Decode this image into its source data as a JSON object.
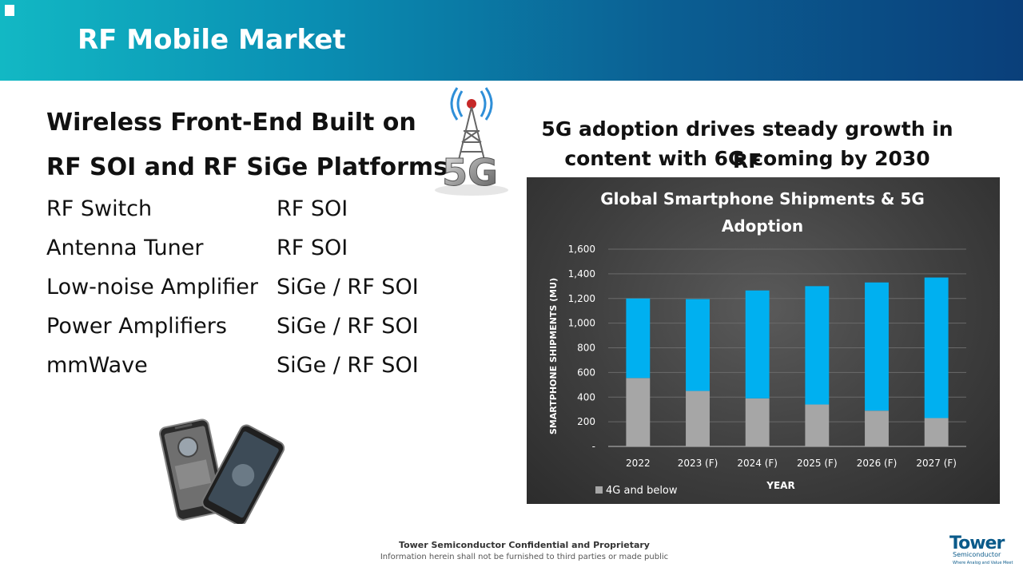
{
  "header": {
    "title": "RF Mobile Market"
  },
  "left": {
    "title_line1": "Wireless Front-End Built on",
    "title_line2": "RF SOI and RF SiGe Platforms",
    "rows": [
      {
        "name": "RF Switch",
        "platform": "RF SOI"
      },
      {
        "name": "Antenna Tuner",
        "platform": "RF SOI"
      },
      {
        "name": "Low-noise Amplifier",
        "platform": "SiGe / RF SOI"
      },
      {
        "name": "Power Amplifiers",
        "platform": "SiGe / RF SOI"
      },
      {
        "name": "mmWave",
        "platform": "SiGe / RF SOI"
      }
    ]
  },
  "right": {
    "headline_line1": "5G adoption drives steady growth in RF",
    "headline_line2": "content with 6G coming by 2030"
  },
  "icons": {
    "badge": "5g-tower-icon",
    "device": "smartphones-icon"
  },
  "badge_text": "5G",
  "chart_data": {
    "type": "bar",
    "stacked": true,
    "title_line1": "Global Smartphone Shipments & 5G",
    "title_line2": "Adoption",
    "xlabel": "YEAR",
    "ylabel": "SMARTPHONE SHIPMENTS (MU)",
    "categories": [
      "2022",
      "2023 (F)",
      "2024 (F)",
      "2025 (F)",
      "2026 (F)",
      "2027 (F)"
    ],
    "ylim": [
      0,
      1600
    ],
    "yticks": [
      0,
      200,
      400,
      600,
      800,
      1000,
      1200,
      1400,
      1600
    ],
    "ytick_labels": [
      "-",
      "200",
      "400",
      "600",
      "800",
      "1,000",
      "1,200",
      "1,400",
      "1,600"
    ],
    "series": [
      {
        "name": "4G and below",
        "color": "#a6a6a6",
        "values": [
          555,
          450,
          390,
          340,
          290,
          230
        ]
      },
      {
        "color": "#00b0f0",
        "values": [
          645,
          745,
          875,
          960,
          1040,
          1140
        ]
      }
    ],
    "legend": "bottom-left",
    "grid": true
  },
  "footer": {
    "line1": "Tower Semiconductor Confidential and Proprietary",
    "line2": "Information herein shall not be furnished to third parties or made public"
  },
  "logo": {
    "word": "Tower",
    "sub": "Semiconductor",
    "tag": "Where Analog and Value Meet"
  }
}
